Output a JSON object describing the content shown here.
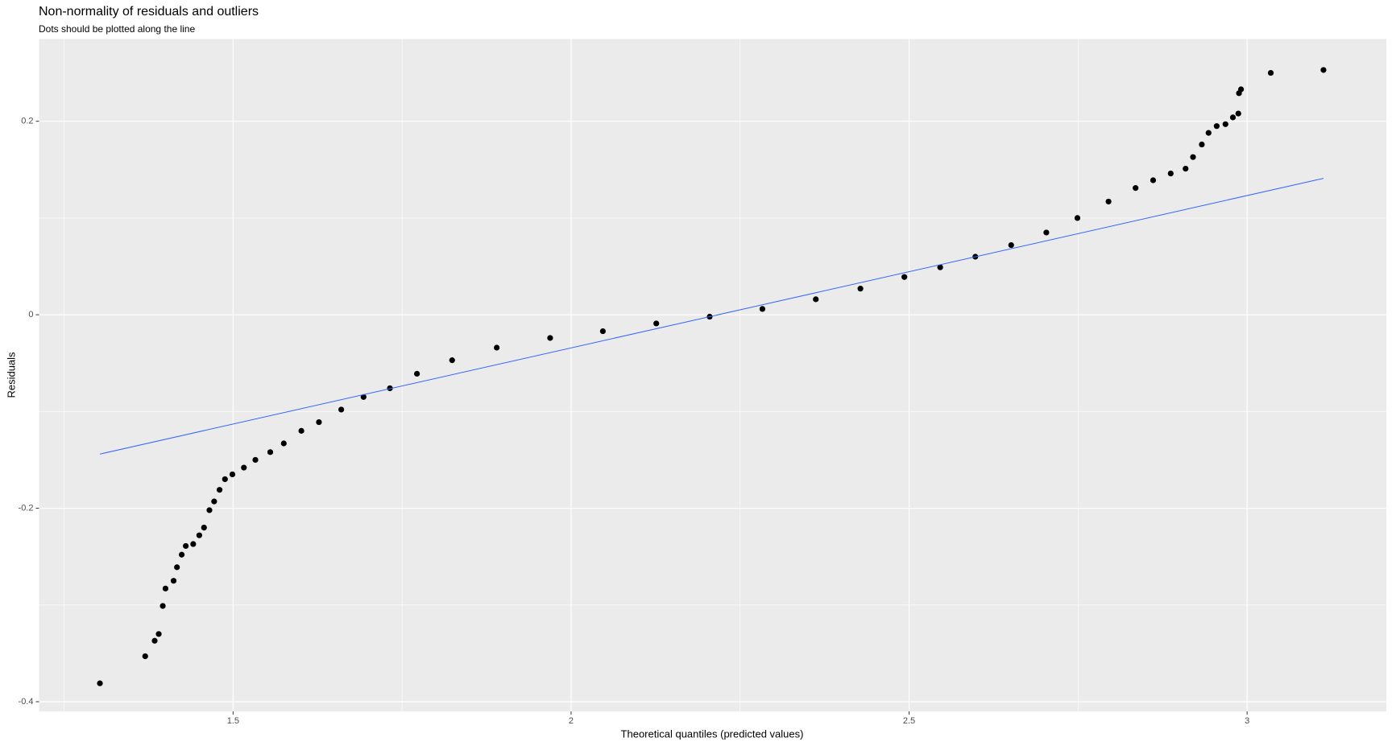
{
  "chart_data": {
    "type": "scatter",
    "title": "Non-normality of residuals and outliers",
    "subtitle": "Dots should be plotted along the line",
    "x_label": "Theoretical quantiles (predicted values)",
    "y_label": "Residuals",
    "xlim": [
      1.213,
      3.206
    ],
    "ylim": [
      -0.41,
      0.285
    ],
    "xticks": [
      1.5,
      2.0,
      2.5,
      3.0
    ],
    "yticks": [
      -0.4,
      -0.2,
      0.0,
      0.2
    ],
    "grid": true,
    "series": [
      {
        "kind": "points",
        "color": "#000000",
        "x": [
          1.303,
          1.37,
          1.384,
          1.39,
          1.396,
          1.4,
          1.412,
          1.417,
          1.424,
          1.43,
          1.441,
          1.45,
          1.457,
          1.465,
          1.472,
          1.48,
          1.488,
          1.499,
          1.516,
          1.533,
          1.555,
          1.575,
          1.601,
          1.627,
          1.66,
          1.693,
          1.732,
          1.772,
          1.824,
          1.89,
          1.969,
          2.047,
          2.126,
          2.205,
          2.283,
          2.362,
          2.428,
          2.493,
          2.546,
          2.598,
          2.651,
          2.703,
          2.749,
          2.795,
          2.835,
          2.861,
          2.887,
          2.909,
          2.92,
          2.933,
          2.943,
          2.955,
          2.968,
          2.979,
          2.987,
          2.988,
          2.991,
          3.035,
          3.113
        ],
        "values": [
          -0.381,
          -0.353,
          -0.337,
          -0.33,
          -0.301,
          -0.283,
          -0.275,
          -0.261,
          -0.248,
          -0.239,
          -0.237,
          -0.228,
          -0.22,
          -0.202,
          -0.193,
          -0.181,
          -0.17,
          -0.165,
          -0.158,
          -0.15,
          -0.142,
          -0.133,
          -0.12,
          -0.111,
          -0.098,
          -0.085,
          -0.076,
          -0.061,
          -0.047,
          -0.034,
          -0.024,
          -0.017,
          -0.009,
          -0.002,
          0.006,
          0.016,
          0.027,
          0.039,
          0.049,
          0.06,
          0.072,
          0.085,
          0.1,
          0.117,
          0.131,
          0.139,
          0.146,
          0.151,
          0.163,
          0.176,
          0.188,
          0.195,
          0.197,
          0.204,
          0.208,
          0.229,
          0.233,
          0.25,
          0.253
        ]
      },
      {
        "kind": "line",
        "color": "#3366ff",
        "x": [
          1.303,
          3.113
        ],
        "values": [
          -0.144,
          0.141
        ]
      }
    ]
  }
}
